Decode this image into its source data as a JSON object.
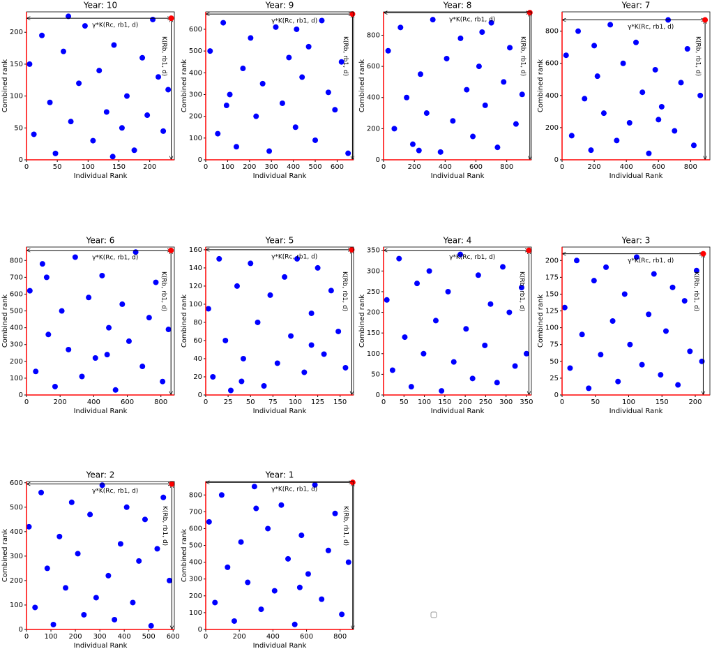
{
  "chart_data": [
    {
      "type": "scatter",
      "title": "Year: 10",
      "xlabel": "Individual Rank",
      "ylabel": "Combined rank",
      "xlim": [
        0,
        240
      ],
      "ylim": [
        0,
        232
      ],
      "xticks": [
        0,
        50,
        100,
        150,
        200
      ],
      "yticks": [
        0,
        50,
        100,
        150,
        200
      ],
      "color": "#0000ff",
      "highlight": {
        "x": 235,
        "y": 222,
        "color": "#ff0000"
      },
      "annotations": [
        "γ*K(Rc, rb1, d)",
        "K(Rb, rb1, d)"
      ],
      "x": [
        5,
        12,
        25,
        38,
        47,
        60,
        72,
        85,
        95,
        108,
        118,
        130,
        142,
        155,
        163,
        175,
        188,
        196,
        205,
        214,
        222,
        230,
        68,
        140
      ],
      "y": [
        150,
        40,
        195,
        90,
        10,
        170,
        60,
        120,
        210,
        30,
        140,
        75,
        180,
        50,
        100,
        15,
        160,
        70,
        220,
        130,
        45,
        110,
        225,
        5
      ]
    },
    {
      "type": "scatter",
      "title": "Year: 9",
      "xlabel": "Individual Rank",
      "ylabel": "Combined rank",
      "xlim": [
        0,
        675
      ],
      "ylim": [
        0,
        680
      ],
      "xticks": [
        0,
        100,
        200,
        300,
        400,
        500,
        600
      ],
      "yticks": [
        0,
        100,
        200,
        300,
        400,
        500,
        600
      ],
      "color": "#0000ff",
      "highlight": {
        "x": 670,
        "y": 670,
        "color": "#ff0000"
      },
      "annotations": [
        "γ*K(Rc, rb1, d)",
        "K(Rb, rb1, d)"
      ],
      "x": [
        20,
        55,
        80,
        110,
        140,
        170,
        205,
        230,
        260,
        290,
        320,
        350,
        380,
        410,
        440,
        470,
        500,
        530,
        560,
        590,
        620,
        650,
        95,
        415
      ],
      "y": [
        500,
        120,
        630,
        300,
        60,
        420,
        560,
        200,
        350,
        40,
        610,
        260,
        470,
        150,
        380,
        520,
        90,
        640,
        310,
        230,
        450,
        30,
        250,
        600
      ]
    },
    {
      "type": "scatter",
      "title": "Year: 8",
      "xlabel": "Individual Rank",
      "ylabel": "Combined rank",
      "xlim": [
        0,
        960
      ],
      "ylim": [
        0,
        950
      ],
      "xticks": [
        0,
        200,
        400,
        600,
        800
      ],
      "yticks": [
        0,
        200,
        400,
        600,
        800
      ],
      "color": "#0000ff",
      "highlight": {
        "x": 950,
        "y": 945,
        "color": "#ff0000"
      },
      "annotations": [
        "γ*K(Rc, rb1, d)",
        "K(Rb, rb1, d)"
      ],
      "x": [
        30,
        70,
        110,
        150,
        190,
        240,
        280,
        320,
        370,
        410,
        450,
        500,
        540,
        580,
        620,
        660,
        700,
        740,
        780,
        820,
        860,
        900,
        230,
        640
      ],
      "y": [
        700,
        200,
        850,
        400,
        100,
        550,
        300,
        900,
        50,
        650,
        250,
        780,
        450,
        150,
        600,
        350,
        880,
        80,
        500,
        720,
        230,
        420,
        60,
        820
      ]
    },
    {
      "type": "scatter",
      "title": "Year: 7",
      "xlabel": "Individual Rank",
      "ylabel": "Combined rank",
      "xlim": [
        0,
        920
      ],
      "ylim": [
        0,
        920
      ],
      "xticks": [
        0,
        200,
        400,
        600,
        800
      ],
      "yticks": [
        0,
        200,
        400,
        600,
        800
      ],
      "color": "#0000ff",
      "highlight": {
        "x": 890,
        "y": 870,
        "color": "#ff0000"
      },
      "annotations": [
        "γ*K(Rc, rb1, d)",
        "K(Rb, rb1, d)"
      ],
      "x": [
        25,
        60,
        100,
        140,
        180,
        220,
        260,
        300,
        340,
        380,
        420,
        460,
        500,
        540,
        580,
        620,
        660,
        700,
        740,
        780,
        820,
        860,
        200,
        600
      ],
      "y": [
        650,
        150,
        800,
        380,
        60,
        520,
        290,
        840,
        120,
        600,
        230,
        730,
        420,
        40,
        560,
        330,
        870,
        180,
        480,
        690,
        90,
        400,
        710,
        250
      ]
    },
    {
      "type": "scatter",
      "title": "Year: 6",
      "xlabel": "Individual Rank",
      "ylabel": "Combined rank",
      "xlim": [
        0,
        880
      ],
      "ylim": [
        0,
        880
      ],
      "xticks": [
        0,
        200,
        400,
        600,
        800
      ],
      "yticks": [
        0,
        100,
        200,
        300,
        400,
        500,
        600,
        700,
        800
      ],
      "color": "#0000ff",
      "highlight": {
        "x": 860,
        "y": 860,
        "color": "#ff0000"
      },
      "annotations": [
        "γ*K(Rc, rb1, d)",
        "K(Rb, rb1, d)"
      ],
      "x": [
        20,
        55,
        95,
        130,
        170,
        210,
        250,
        290,
        330,
        370,
        410,
        450,
        490,
        530,
        570,
        610,
        650,
        690,
        730,
        770,
        810,
        845,
        120,
        480
      ],
      "y": [
        620,
        140,
        780,
        360,
        50,
        500,
        270,
        820,
        110,
        580,
        220,
        710,
        400,
        30,
        540,
        320,
        850,
        170,
        460,
        670,
        80,
        390,
        700,
        240
      ]
    },
    {
      "type": "scatter",
      "title": "Year: 5",
      "xlabel": "Individual Rank",
      "ylabel": "Combined rank",
      "xlim": [
        0,
        165
      ],
      "ylim": [
        0,
        163
      ],
      "xticks": [
        0,
        25,
        50,
        75,
        100,
        125,
        150
      ],
      "yticks": [
        0,
        20,
        40,
        60,
        80,
        100,
        120,
        140,
        160
      ],
      "color": "#0000ff",
      "highlight": {
        "x": 163,
        "y": 160,
        "color": "#ff0000"
      },
      "annotations": [
        "γ*K(Rc, rb1, d)",
        "K(Rb, rb1, d)"
      ],
      "x": [
        3,
        8,
        15,
        22,
        28,
        35,
        42,
        50,
        58,
        65,
        72,
        80,
        88,
        95,
        102,
        110,
        118,
        125,
        132,
        140,
        148,
        156,
        40,
        118
      ],
      "y": [
        95,
        20,
        150,
        60,
        5,
        120,
        40,
        145,
        80,
        10,
        110,
        35,
        130,
        65,
        150,
        25,
        90,
        140,
        45,
        115,
        70,
        30,
        15,
        55
      ]
    },
    {
      "type": "scatter",
      "title": "Year: 4",
      "xlabel": "Individual Rank",
      "ylabel": "Combined rank",
      "xlim": [
        0,
        362
      ],
      "ylim": [
        0,
        358
      ],
      "xticks": [
        0,
        50,
        100,
        150,
        200,
        250,
        300,
        350
      ],
      "yticks": [
        0,
        50,
        100,
        150,
        200,
        250,
        300,
        350
      ],
      "color": "#0000ff",
      "highlight": {
        "x": 356,
        "y": 350,
        "color": "#ff0000"
      },
      "annotations": [
        "γ*K(Rc, rb1, d)",
        "K(Rb, rb1, d)"
      ],
      "x": [
        8,
        22,
        38,
        52,
        68,
        82,
        98,
        112,
        128,
        142,
        158,
        172,
        188,
        202,
        218,
        232,
        248,
        262,
        278,
        292,
        308,
        322,
        338,
        350
      ],
      "y": [
        230,
        60,
        330,
        140,
        20,
        270,
        100,
        300,
        180,
        10,
        250,
        80,
        340,
        160,
        40,
        290,
        120,
        220,
        30,
        310,
        200,
        70,
        260,
        100
      ]
    },
    {
      "type": "scatter",
      "title": "Year: 3",
      "xlabel": "Individual Rank",
      "ylabel": "Combined rank",
      "xlim": [
        0,
        222
      ],
      "ylim": [
        0,
        220
      ],
      "xticks": [
        0,
        50,
        100,
        150,
        200
      ],
      "yticks": [
        0,
        25,
        50,
        75,
        100,
        125,
        150,
        175,
        200
      ],
      "color": "#0000ff",
      "highlight": {
        "x": 212,
        "y": 210,
        "color": "#ff0000"
      },
      "annotations": [
        "γ*K(Rc, rb1, d)",
        "K(Rb, rb1, d)"
      ],
      "x": [
        4,
        12,
        22,
        30,
        40,
        48,
        58,
        66,
        76,
        84,
        94,
        102,
        112,
        120,
        130,
        138,
        148,
        156,
        166,
        174,
        184,
        192,
        202,
        210
      ],
      "y": [
        130,
        40,
        200,
        90,
        10,
        170,
        60,
        190,
        110,
        20,
        150,
        75,
        205,
        45,
        120,
        180,
        30,
        95,
        160,
        15,
        140,
        65,
        185,
        50
      ]
    },
    {
      "type": "scatter",
      "title": "Year: 2",
      "xlabel": "Individual Rank",
      "ylabel": "Combined rank",
      "xlim": [
        0,
        605
      ],
      "ylim": [
        0,
        605
      ],
      "xticks": [
        0,
        100,
        200,
        300,
        400,
        500,
        600
      ],
      "yticks": [
        0,
        100,
        200,
        300,
        400,
        500,
        600
      ],
      "color": "#0000ff",
      "highlight": {
        "x": 595,
        "y": 595,
        "color": "#ff0000"
      },
      "annotations": [
        "γ*K(Rc, rb1, d)",
        "K(Rb, rb1, d)"
      ],
      "x": [
        10,
        35,
        60,
        85,
        110,
        135,
        160,
        185,
        210,
        235,
        260,
        285,
        310,
        335,
        360,
        385,
        410,
        435,
        460,
        485,
        510,
        535,
        560,
        585
      ],
      "y": [
        420,
        90,
        560,
        250,
        20,
        380,
        170,
        520,
        310,
        60,
        470,
        130,
        590,
        220,
        40,
        350,
        500,
        110,
        280,
        450,
        15,
        330,
        540,
        200
      ]
    },
    {
      "type": "scatter",
      "title": "Year: 1",
      "xlabel": "Individual Rank",
      "ylabel": "Combined rank",
      "xlim": [
        0,
        880
      ],
      "ylim": [
        0,
        880
      ],
      "xticks": [
        0,
        200,
        400,
        600,
        800
      ],
      "yticks": [
        0,
        100,
        200,
        300,
        400,
        500,
        600,
        700,
        800
      ],
      "color": "#0000ff",
      "highlight": {
        "x": 875,
        "y": 875,
        "color": "#ff0000"
      },
      "annotations": [
        "γ*K(Rc, rb1, d)",
        "K(Rb, rb1, d)"
      ],
      "x": [
        20,
        55,
        95,
        130,
        170,
        210,
        250,
        290,
        330,
        370,
        410,
        450,
        490,
        530,
        570,
        610,
        650,
        690,
        730,
        770,
        810,
        850,
        300,
        560
      ],
      "y": [
        640,
        160,
        800,
        370,
        50,
        520,
        280,
        850,
        120,
        600,
        230,
        740,
        420,
        30,
        560,
        330,
        860,
        180,
        470,
        690,
        90,
        400,
        720,
        250
      ]
    }
  ]
}
